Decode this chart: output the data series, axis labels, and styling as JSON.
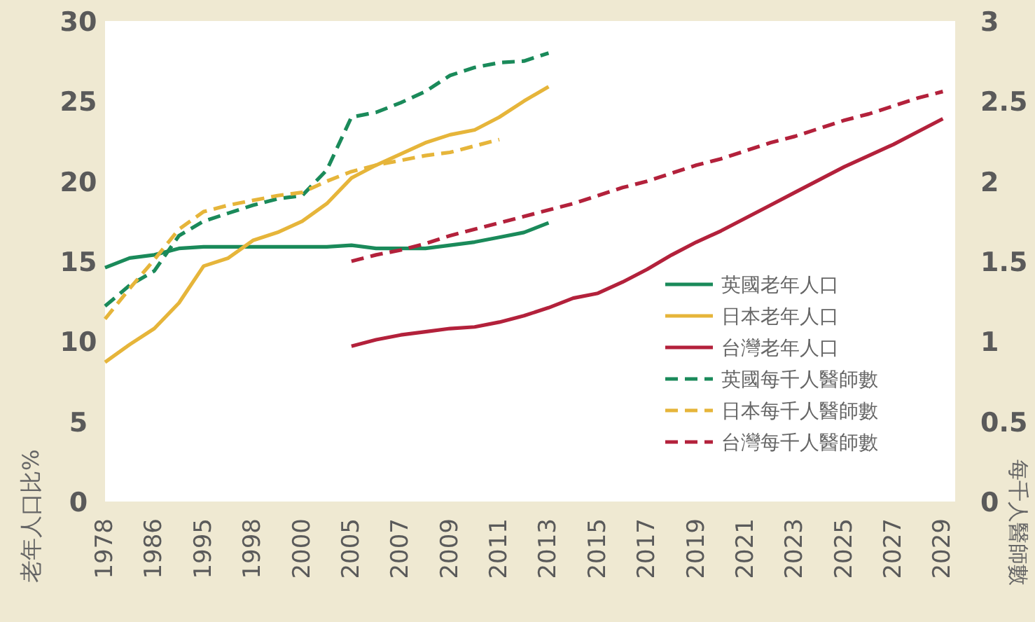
{
  "chart_data": {
    "type": "line",
    "categories": [
      "1978",
      null,
      "1986",
      null,
      "1995",
      null,
      "1998",
      null,
      "2000",
      null,
      "2005",
      null,
      "2007",
      null,
      "2009",
      null,
      "2011",
      null,
      "2013",
      null,
      "2015",
      null,
      "2017",
      null,
      "2019",
      null,
      "2021",
      null,
      "2023",
      null,
      "2025",
      null,
      "2027",
      null,
      "2029"
    ],
    "ylabel": "老年人口比%",
    "y2label": "每千人醫師數",
    "ylim": [
      0,
      30
    ],
    "yticks": [
      0,
      5,
      10,
      15,
      20,
      25,
      30
    ],
    "y2lim": [
      0,
      3
    ],
    "y2ticks": [
      0,
      0.5,
      1,
      1.5,
      2,
      2.5,
      3
    ],
    "legend": "bottom right",
    "grid": false,
    "series": [
      {
        "name": "英國老年人口",
        "color": "#1a8a5a",
        "line_style": "solid",
        "values": [
          14.6,
          15.2,
          15.4,
          15.8,
          15.9,
          15.9,
          15.9,
          15.9,
          15.9,
          15.9,
          16.0,
          15.8,
          15.8,
          15.8,
          16.0,
          16.2,
          16.5,
          16.8,
          17.4,
          null,
          null,
          null,
          null,
          null,
          null,
          null,
          null,
          null,
          null,
          null,
          null,
          null,
          null,
          null,
          null
        ]
      },
      {
        "name": "日本老年人口",
        "color": "#e6b53a",
        "line_style": "solid",
        "values": [
          8.7,
          9.8,
          10.8,
          12.4,
          14.7,
          15.2,
          16.3,
          16.8,
          17.5,
          18.6,
          20.2,
          21.0,
          21.7,
          22.4,
          22.9,
          23.2,
          24.0,
          25.0,
          25.9,
          null,
          null,
          null,
          null,
          null,
          null,
          null,
          null,
          null,
          null,
          null,
          null,
          null,
          null,
          null,
          null
        ]
      },
      {
        "name": "台灣老年人口",
        "color": "#b3213b",
        "line_style": "solid",
        "values": [
          null,
          null,
          null,
          null,
          null,
          null,
          null,
          null,
          null,
          null,
          9.7,
          10.1,
          10.4,
          10.6,
          10.8,
          10.9,
          11.2,
          11.6,
          12.1,
          12.7,
          13.0,
          13.7,
          14.5,
          15.4,
          16.2,
          16.9,
          17.7,
          18.5,
          19.3,
          20.1,
          20.9,
          21.6,
          22.3,
          23.1,
          23.9
        ]
      },
      {
        "name": "英國每千人醫師數",
        "color": "#1a8a5a",
        "line_style": "dashed",
        "axis": "y2",
        "values": [
          1.22,
          1.35,
          1.44,
          1.66,
          1.75,
          1.8,
          1.85,
          1.89,
          1.91,
          2.07,
          2.4,
          2.43,
          2.49,
          2.56,
          2.66,
          2.71,
          2.74,
          2.75,
          2.8,
          null,
          null,
          null,
          null,
          null,
          null,
          null,
          null,
          null,
          null,
          null,
          null,
          null,
          null,
          null,
          null
        ]
      },
      {
        "name": "日本每千人醫師數",
        "color": "#e6b53a",
        "line_style": "dashed",
        "axis": "y2",
        "values": [
          1.14,
          1.33,
          1.51,
          1.7,
          1.81,
          1.85,
          1.88,
          1.91,
          1.93,
          2.0,
          2.06,
          2.1,
          2.13,
          2.16,
          2.18,
          2.22,
          2.26,
          null,
          null,
          null,
          null,
          null,
          null,
          null,
          null,
          null,
          null,
          null,
          null,
          null,
          null,
          null,
          null,
          null,
          null
        ]
      },
      {
        "name": "台灣每千人醫師數",
        "color": "#b3213b",
        "line_style": "dashed",
        "axis": "y2",
        "values": [
          null,
          null,
          null,
          null,
          null,
          null,
          null,
          null,
          null,
          null,
          1.5,
          1.54,
          1.57,
          1.61,
          1.66,
          1.7,
          1.74,
          1.78,
          1.82,
          1.86,
          1.91,
          1.96,
          2.0,
          2.05,
          2.1,
          2.14,
          2.19,
          2.24,
          2.28,
          2.33,
          2.38,
          2.42,
          2.47,
          2.52,
          2.56
        ]
      }
    ]
  }
}
